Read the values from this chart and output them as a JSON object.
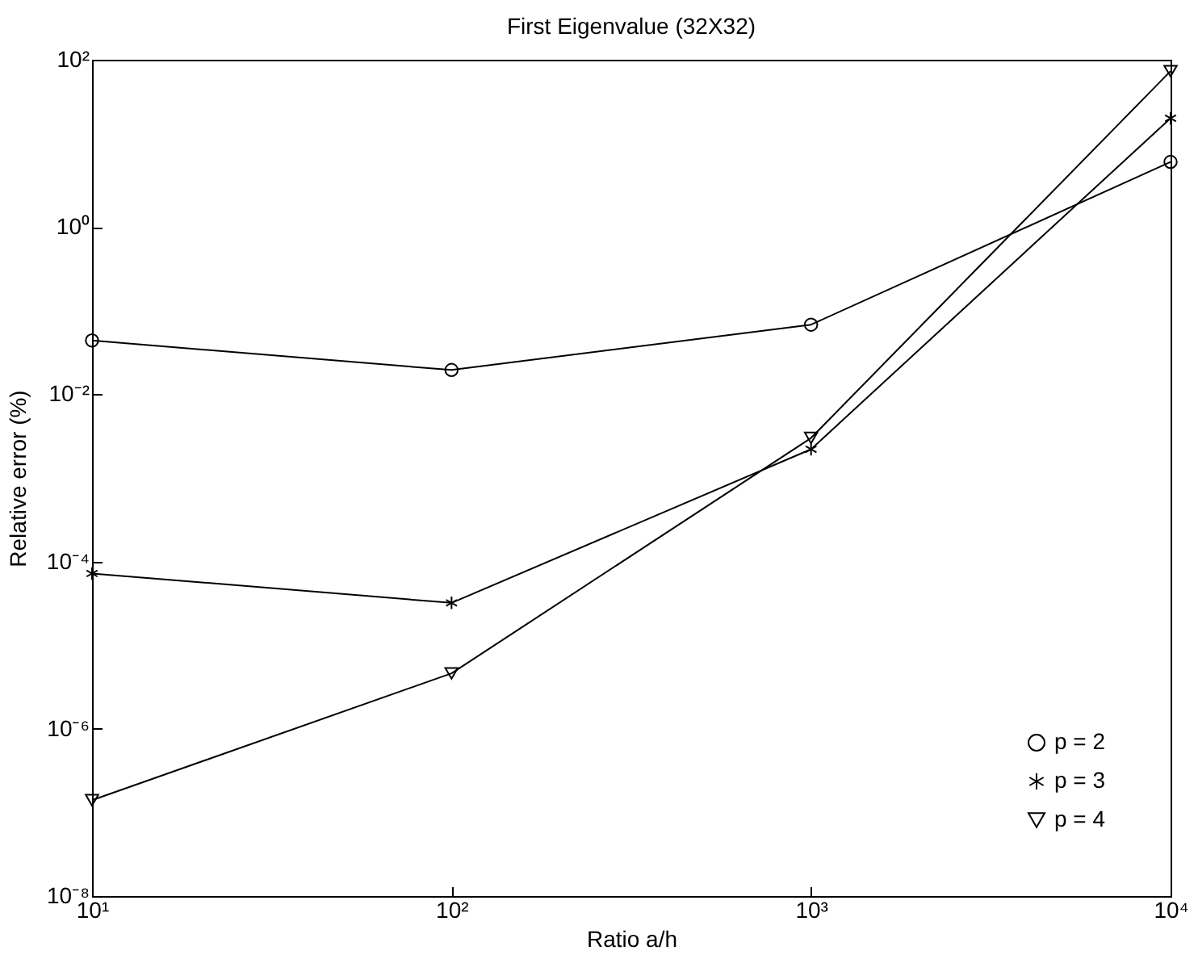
{
  "chart_data": {
    "type": "line",
    "title": "First Eigenvalue (32X32)",
    "xlabel": "Ratio a/h",
    "ylabel": "Relative error (%)",
    "x": [
      10,
      100,
      1000,
      10000
    ],
    "log": "xy",
    "series": [
      {
        "name": "p = 2",
        "color": "#000000",
        "marker": "circle",
        "values": [
          0.044,
          0.0195,
          0.068,
          6
        ]
      },
      {
        "name": "p = 3",
        "color": "#000000",
        "marker": "cross",
        "values": [
          7.2e-05,
          3.2e-05,
          0.0022,
          20
        ]
      },
      {
        "name": "p = 4",
        "color": "#000000",
        "marker": "triangle",
        "values": [
          1.4e-07,
          4.6e-06,
          0.003,
          73
        ]
      }
    ],
    "xlim": [
      10,
      10000
    ],
    "xticks": [
      {
        "value": 10,
        "label": "10¹"
      },
      {
        "value": 100,
        "label": "10²"
      },
      {
        "value": 1000,
        "label": "10³"
      },
      {
        "value": 10000,
        "label": "10⁴"
      }
    ],
    "ylim": [
      1e-08,
      100
    ],
    "yticks": [
      {
        "value": 1e-08,
        "label": "10⁻⁸"
      },
      {
        "value": 1e-06,
        "label": "10⁻⁶"
      },
      {
        "value": 0.0001,
        "label": "10⁻⁴"
      },
      {
        "value": 0.01,
        "label": "10⁻²"
      },
      {
        "value": 1,
        "label": "10⁰"
      },
      {
        "value": 100,
        "label": "10²"
      }
    ],
    "legend": "bottom right",
    "grid": false,
    "line_style": "solid"
  }
}
